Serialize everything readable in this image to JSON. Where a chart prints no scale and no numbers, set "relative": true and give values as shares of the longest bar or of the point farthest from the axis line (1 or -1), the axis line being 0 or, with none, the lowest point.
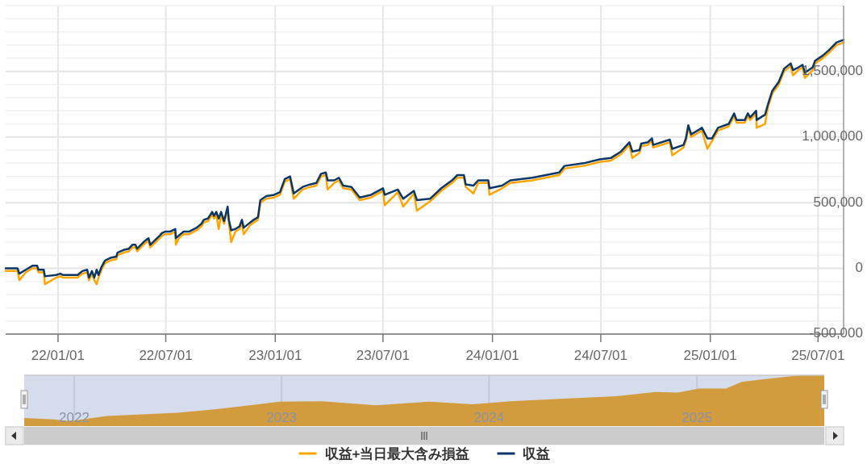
{
  "chart_data": [
    {
      "type": "line",
      "xlim": [
        "2021-10-05",
        "2025-08-13"
      ],
      "ylim": [
        -500000,
        2000000
      ],
      "xticks": [
        {
          "value": "2022-01-01",
          "label": "22/01/01"
        },
        {
          "value": "2022-07-01",
          "label": "22/07/01"
        },
        {
          "value": "2023-01-01",
          "label": "23/01/01"
        },
        {
          "value": "2023-07-01",
          "label": "23/07/01"
        },
        {
          "value": "2024-01-01",
          "label": "24/01/01"
        },
        {
          "value": "2024-07-01",
          "label": "24/07/01"
        },
        {
          "value": "2025-01-01",
          "label": "25/01/01"
        },
        {
          "value": "2025-07-01",
          "label": "25/07/01"
        }
      ],
      "yticks": [
        {
          "value": -500000,
          "label": "-500,000"
        },
        {
          "value": -400000,
          "label": null
        },
        {
          "value": -300000,
          "label": null
        },
        {
          "value": -200000,
          "label": null
        },
        {
          "value": -100000,
          "label": null
        },
        0,
        {
          "value": 100000,
          "label": null
        },
        {
          "value": 200000,
          "label": null
        },
        {
          "value": 300000,
          "label": null
        },
        {
          "value": 400000,
          "label": null
        },
        {
          "value": 500000,
          "label": "500,000"
        },
        {
          "value": 600000,
          "label": null
        },
        {
          "value": 700000,
          "label": null
        },
        {
          "value": 800000,
          "label": null
        },
        {
          "value": 900000,
          "label": null
        },
        {
          "value": 1000000,
          "label": "1,000,000"
        },
        {
          "value": 1100000,
          "label": null
        },
        {
          "value": 1200000,
          "label": null
        },
        {
          "value": 1300000,
          "label": null
        },
        {
          "value": 1400000,
          "label": null
        },
        {
          "value": 1500000,
          "label": "1,500,000"
        },
        {
          "value": 1600000,
          "label": null
        },
        {
          "value": 1700000,
          "label": null
        },
        {
          "value": 1800000,
          "label": null
        },
        {
          "value": 1900000,
          "label": null
        },
        {
          "value": 2000000,
          "label": null
        }
      ],
      "grid": true,
      "legend": "bottom",
      "x": [
        "2021-10-05",
        "2021-10-25",
        "2021-10-28",
        "2021-11-08",
        "2021-11-19",
        "2021-11-27",
        "2021-11-29",
        "2021-12-08",
        "2021-12-10",
        "2021-12-29",
        "2022-01-05",
        "2022-01-09",
        "2022-02-03",
        "2022-02-11",
        "2022-02-19",
        "2022-02-22",
        "2022-02-27",
        "2022-03-03",
        "2022-03-07",
        "2022-03-10",
        "2022-03-15",
        "2022-03-21",
        "2022-03-30",
        "2022-04-09",
        "2022-04-11",
        "2022-04-21",
        "2022-04-30",
        "2022-05-06",
        "2022-05-11",
        "2022-05-14",
        "2022-05-27",
        "2022-06-02",
        "2022-06-05",
        "2022-06-21",
        "2022-06-25",
        "2022-06-30",
        "2022-07-08",
        "2022-07-17",
        "2022-07-18",
        "2022-07-23",
        "2022-07-31",
        "2022-08-09",
        "2022-08-22",
        "2022-08-30",
        "2022-09-03",
        "2022-09-10",
        "2022-09-17",
        "2022-09-20",
        "2022-09-24",
        "2022-09-28",
        "2022-10-02",
        "2022-10-07",
        "2022-10-13",
        "2022-10-15",
        "2022-10-19",
        "2022-10-26",
        "2022-11-02",
        "2022-11-06",
        "2022-11-09",
        "2022-11-20",
        "2022-11-26",
        "2022-12-03",
        "2022-12-07",
        "2022-12-17",
        "2022-12-30",
        "2023-01-09",
        "2023-01-17",
        "2023-01-26",
        "2023-02-01",
        "2023-02-16",
        "2023-03-01",
        "2023-03-11",
        "2023-03-19",
        "2023-03-27",
        "2023-03-30",
        "2023-04-10",
        "2023-04-18",
        "2023-04-25",
        "2023-05-09",
        "2023-05-23",
        "2023-06-11",
        "2023-07-01",
        "2023-07-04",
        "2023-07-26",
        "2023-08-04",
        "2023-08-22",
        "2023-08-27",
        "2023-09-18",
        "2023-10-07",
        "2023-10-25",
        "2023-11-03",
        "2023-11-14",
        "2023-11-17",
        "2023-11-30",
        "2023-12-08",
        "2023-12-25",
        "2023-12-27",
        "2024-01-17",
        "2024-01-31",
        "2024-03-08",
        "2024-04-22",
        "2024-05-01",
        "2024-06-02",
        "2024-06-29",
        "2024-07-18",
        "2024-08-04",
        "2024-08-18",
        "2024-08-23",
        "2024-09-04",
        "2024-09-07",
        "2024-09-18",
        "2024-09-25",
        "2024-09-27",
        "2024-10-25",
        "2024-10-29",
        "2024-11-17",
        "2024-11-21",
        "2024-11-25",
        "2024-11-30",
        "2024-12-18",
        "2024-12-27",
        "2025-01-04",
        "2025-01-14",
        "2025-02-01",
        "2025-02-10",
        "2025-02-14",
        "2025-02-28",
        "2025-03-05",
        "2025-03-09",
        "2025-03-19",
        "2025-03-20",
        "2025-04-03",
        "2025-04-08",
        "2025-04-15",
        "2025-04-26",
        "2025-05-05",
        "2025-05-16",
        "2025-05-20",
        "2025-05-29",
        "2025-06-05",
        "2025-06-09",
        "2025-06-22",
        "2025-06-26",
        "2025-07-09",
        "2025-07-19",
        "2025-08-01",
        "2025-08-13"
      ],
      "series": [
        {
          "name": "収益+当日最大含み損益",
          "color": "#ffa500",
          "values": [
            -20000,
            -20000,
            -90000,
            -30000,
            0,
            0,
            -30000,
            -30000,
            -120000,
            -70000,
            -60000,
            -70000,
            -70000,
            -40000,
            -30000,
            -90000,
            -40000,
            -90000,
            -120000,
            -70000,
            -10000,
            40000,
            60000,
            70000,
            100000,
            120000,
            130000,
            160000,
            160000,
            130000,
            190000,
            210000,
            160000,
            230000,
            250000,
            260000,
            260000,
            280000,
            180000,
            230000,
            260000,
            260000,
            290000,
            320000,
            350000,
            360000,
            410000,
            380000,
            410000,
            300000,
            410000,
            340000,
            450000,
            350000,
            200000,
            280000,
            300000,
            350000,
            260000,
            330000,
            350000,
            370000,
            500000,
            530000,
            540000,
            560000,
            660000,
            680000,
            530000,
            600000,
            620000,
            630000,
            700000,
            710000,
            600000,
            650000,
            670000,
            610000,
            600000,
            520000,
            540000,
            590000,
            480000,
            580000,
            470000,
            570000,
            440000,
            510000,
            590000,
            650000,
            690000,
            690000,
            620000,
            570000,
            650000,
            650000,
            560000,
            610000,
            650000,
            670000,
            710000,
            760000,
            780000,
            810000,
            820000,
            870000,
            940000,
            840000,
            880000,
            930000,
            940000,
            970000,
            920000,
            960000,
            860000,
            920000,
            970000,
            1070000,
            1000000,
            1050000,
            910000,
            970000,
            1050000,
            1080000,
            1160000,
            1110000,
            1110000,
            1160000,
            1130000,
            1180000,
            1070000,
            1100000,
            1230000,
            1330000,
            1400000,
            1500000,
            1540000,
            1470000,
            1510000,
            1530000,
            1450000,
            1510000,
            1560000,
            1600000,
            1640000,
            1700000,
            1720000
          ]
        },
        {
          "name": "収益",
          "color": "#0b3768",
          "values": [
            0,
            0,
            -40000,
            -10000,
            20000,
            20000,
            -10000,
            -10000,
            -60000,
            -50000,
            -40000,
            -50000,
            -50000,
            -20000,
            -10000,
            -70000,
            -20000,
            -70000,
            -10000,
            -50000,
            10000,
            60000,
            80000,
            90000,
            120000,
            140000,
            150000,
            180000,
            180000,
            150000,
            210000,
            230000,
            180000,
            250000,
            270000,
            280000,
            280000,
            300000,
            230000,
            250000,
            280000,
            280000,
            310000,
            340000,
            370000,
            380000,
            430000,
            400000,
            430000,
            380000,
            430000,
            360000,
            470000,
            370000,
            290000,
            300000,
            320000,
            370000,
            310000,
            350000,
            370000,
            390000,
            520000,
            550000,
            560000,
            580000,
            680000,
            700000,
            570000,
            620000,
            640000,
            650000,
            720000,
            730000,
            670000,
            670000,
            690000,
            630000,
            620000,
            540000,
            560000,
            610000,
            560000,
            600000,
            530000,
            590000,
            520000,
            530000,
            610000,
            670000,
            710000,
            710000,
            640000,
            630000,
            670000,
            670000,
            610000,
            630000,
            670000,
            690000,
            730000,
            780000,
            800000,
            830000,
            840000,
            890000,
            960000,
            890000,
            900000,
            950000,
            960000,
            990000,
            940000,
            980000,
            910000,
            940000,
            990000,
            1090000,
            1020000,
            1070000,
            990000,
            990000,
            1070000,
            1100000,
            1180000,
            1130000,
            1130000,
            1180000,
            1150000,
            1200000,
            1130000,
            1170000,
            1250000,
            1350000,
            1420000,
            1520000,
            1560000,
            1510000,
            1530000,
            1550000,
            1490000,
            1530000,
            1580000,
            1620000,
            1660000,
            1720000,
            1740000
          ]
        }
      ]
    },
    {
      "type": "area",
      "relative": true,
      "xlim": [
        "2021-10-05",
        "2025-08-13"
      ],
      "grid": "x",
      "tick_labels": "x",
      "color": "#d29b3d",
      "xticks": [
        {
          "value": "2022-01-01",
          "label": "2022"
        },
        {
          "value": "2023-01-01",
          "label": "2023"
        },
        {
          "value": "2024-01-01",
          "label": "2024"
        },
        {
          "value": "2025-01-01",
          "label": "2025"
        }
      ],
      "x": [
        "2021-10-05",
        "2021-11-26",
        "2021-12-25",
        "2022-02-28",
        "2022-07-02",
        "2022-09-15",
        "2022-11-21",
        "2022-12-29",
        "2023-03-13",
        "2023-06-16",
        "2023-09-18",
        "2023-12-03",
        "2024-02-08",
        "2024-05-13",
        "2024-08-16",
        "2024-10-20",
        "2024-11-28",
        "2025-01-05",
        "2025-02-21",
        "2025-03-21",
        "2025-04-28",
        "2025-07-03",
        "2025-08-13"
      ],
      "values": [
        0.16,
        0.13,
        0.1,
        0.2,
        0.26,
        0.34,
        0.43,
        0.48,
        0.49,
        0.41,
        0.48,
        0.43,
        0.49,
        0.54,
        0.59,
        0.67,
        0.66,
        0.74,
        0.74,
        0.87,
        0.92,
        1.0,
        1.0
      ]
    }
  ]
}
